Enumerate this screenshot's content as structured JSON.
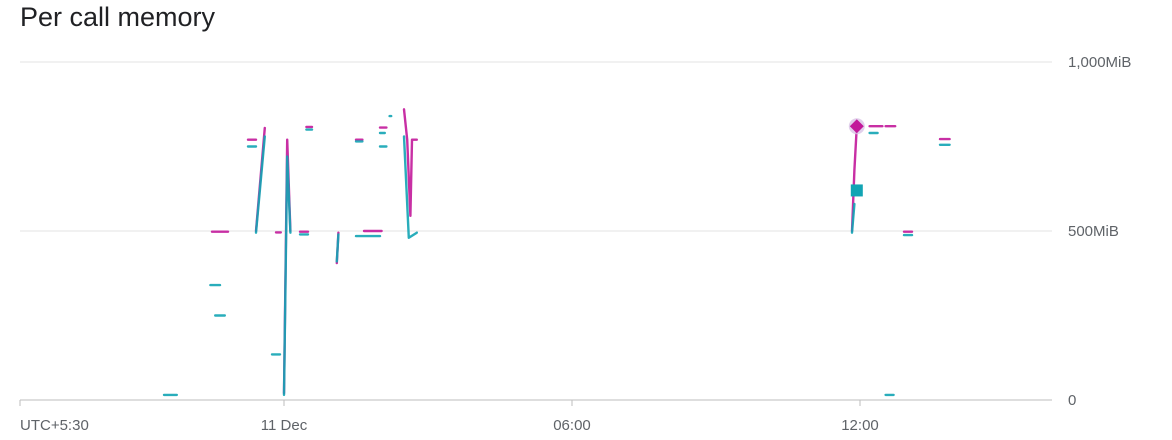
{
  "chart_data": {
    "type": "line",
    "title": "Per call memory",
    "y_unit": "MiB",
    "ylim": [
      0,
      1000
    ],
    "y_ticks": [
      {
        "value": 0,
        "label": "0"
      },
      {
        "value": 500,
        "label": "500MiB"
      },
      {
        "value": 1000,
        "label": "1,000MiB"
      }
    ],
    "xlim": [
      "2024-12-10T18:30",
      "2024-12-11T16:00"
    ],
    "x_ticks": [
      {
        "value": "2024-12-10T18:30",
        "label": "UTC+5:30"
      },
      {
        "value": "2024-12-11T00:00",
        "label": "11 Dec"
      },
      {
        "value": "2024-12-11T06:00",
        "label": "06:00"
      },
      {
        "value": "2024-12-11T12:00",
        "label": "12:00"
      }
    ],
    "grid": true,
    "legend": "none",
    "colors": {
      "pink": "#c2189a",
      "teal": "#12a4b4",
      "overlap": "#4a6fa5",
      "grid": "#e3e3e3",
      "axis": "#bdbdbd"
    },
    "series": [
      {
        "color_key": "pink",
        "segments": [
          [
            [
              "2024-12-10T22:30",
              498
            ],
            [
              "2024-12-10T22:50",
              498
            ]
          ],
          [
            [
              "2024-12-10T23:15",
              770
            ],
            [
              "2024-12-10T23:25",
              770
            ]
          ],
          [
            [
              "2024-12-10T23:25",
              500
            ],
            [
              "2024-12-10T23:36",
              805
            ]
          ],
          [
            [
              "2024-12-10T23:50",
              496
            ],
            [
              "2024-12-10T23:56",
              496
            ]
          ],
          [
            [
              "2024-12-11T00:00",
              20
            ],
            [
              "2024-12-11T00:04",
              770
            ],
            [
              "2024-12-11T00:08",
              500
            ]
          ],
          [
            [
              "2024-12-11T00:20",
              498
            ],
            [
              "2024-12-11T00:30",
              498
            ]
          ],
          [
            [
              "2024-12-11T00:28",
              808
            ],
            [
              "2024-12-11T00:35",
              808
            ]
          ],
          [
            [
              "2024-12-11T01:06",
              405
            ],
            [
              "2024-12-11T01:08",
              495
            ]
          ],
          [
            [
              "2024-12-11T01:30",
              770
            ],
            [
              "2024-12-11T01:38",
              770
            ]
          ],
          [
            [
              "2024-12-11T01:40",
              500
            ],
            [
              "2024-12-11T02:02",
              500
            ]
          ],
          [
            [
              "2024-12-11T02:00",
              806
            ],
            [
              "2024-12-11T02:08",
              806
            ]
          ],
          [
            [
              "2024-12-11T02:30",
              860
            ],
            [
              "2024-12-11T02:34",
              770
            ],
            [
              "2024-12-11T02:38",
              545
            ],
            [
              "2024-12-11T02:40",
              770
            ],
            [
              "2024-12-11T02:46",
              770
            ]
          ],
          [
            [
              "2024-12-11T11:50",
              500
            ],
            [
              "2024-12-11T11:53",
              680
            ],
            [
              "2024-12-11T11:56",
              810
            ]
          ],
          [
            [
              "2024-12-11T12:12",
              810
            ],
            [
              "2024-12-11T12:28",
              810
            ]
          ],
          [
            [
              "2024-12-11T12:32",
              810
            ],
            [
              "2024-12-11T12:44",
              810
            ]
          ],
          [
            [
              "2024-12-11T12:55",
              498
            ],
            [
              "2024-12-11T13:05",
              498
            ]
          ],
          [
            [
              "2024-12-11T13:40",
              772
            ],
            [
              "2024-12-11T13:52",
              772
            ]
          ]
        ],
        "markers": [
          {
            "shape": "diamond",
            "point": [
              "2024-12-11T11:56",
              810
            ]
          }
        ]
      },
      {
        "color_key": "teal",
        "segments": [
          [
            [
              "2024-12-10T21:30",
              15
            ],
            [
              "2024-12-10T21:46",
              15
            ]
          ],
          [
            [
              "2024-12-10T22:28",
              340
            ],
            [
              "2024-12-10T22:40",
              340
            ]
          ],
          [
            [
              "2024-12-10T22:34",
              250
            ],
            [
              "2024-12-10T22:46",
              250
            ]
          ],
          [
            [
              "2024-12-10T23:15",
              750
            ],
            [
              "2024-12-10T23:25",
              750
            ]
          ],
          [
            [
              "2024-12-10T23:25",
              495
            ],
            [
              "2024-12-10T23:36",
              780
            ]
          ],
          [
            [
              "2024-12-10T23:45",
              135
            ],
            [
              "2024-12-10T23:55",
              135
            ]
          ],
          [
            [
              "2024-12-11T00:00",
              15
            ],
            [
              "2024-12-11T00:04",
              720
            ],
            [
              "2024-12-11T00:08",
              495
            ]
          ],
          [
            [
              "2024-12-11T00:20",
              490
            ],
            [
              "2024-12-11T00:30",
              490
            ]
          ],
          [
            [
              "2024-12-11T00:28",
              800
            ],
            [
              "2024-12-11T00:35",
              800
            ]
          ],
          [
            [
              "2024-12-11T01:06",
              410
            ],
            [
              "2024-12-11T01:08",
              490
            ]
          ],
          [
            [
              "2024-12-11T01:30",
              485
            ],
            [
              "2024-12-11T02:00",
              485
            ]
          ],
          [
            [
              "2024-12-11T01:30",
              765
            ],
            [
              "2024-12-11T01:38",
              765
            ]
          ],
          [
            [
              "2024-12-11T02:00",
              750
            ],
            [
              "2024-12-11T02:08",
              750
            ]
          ],
          [
            [
              "2024-12-11T02:00",
              790
            ],
            [
              "2024-12-11T02:06",
              790
            ]
          ],
          [
            [
              "2024-12-11T02:12",
              840
            ],
            [
              "2024-12-11T02:14",
              840
            ]
          ],
          [
            [
              "2024-12-11T02:30",
              780
            ],
            [
              "2024-12-11T02:36",
              480
            ],
            [
              "2024-12-11T02:46",
              495
            ]
          ],
          [
            [
              "2024-12-11T11:50",
              495
            ],
            [
              "2024-12-11T11:53",
              580
            ]
          ],
          [
            [
              "2024-12-11T12:12",
              790
            ],
            [
              "2024-12-11T12:22",
              790
            ]
          ],
          [
            [
              "2024-12-11T12:32",
              15
            ],
            [
              "2024-12-11T12:42",
              15
            ]
          ],
          [
            [
              "2024-12-11T12:55",
              488
            ],
            [
              "2024-12-11T13:05",
              488
            ]
          ],
          [
            [
              "2024-12-11T13:40",
              755
            ],
            [
              "2024-12-11T13:52",
              755
            ]
          ]
        ],
        "markers": [
          {
            "shape": "square",
            "point": [
              "2024-12-11T11:56",
              620
            ]
          }
        ]
      }
    ]
  }
}
